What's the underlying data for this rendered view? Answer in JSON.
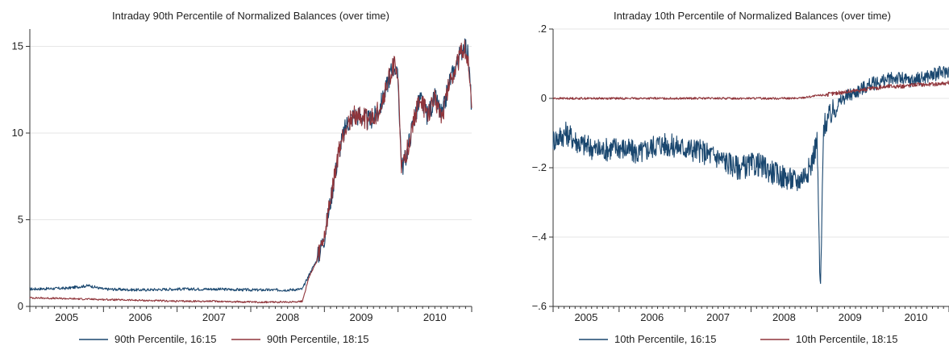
{
  "chart_data": [
    {
      "type": "line",
      "title": "Intraday 90th Percentile of Normalized Balances (over time)",
      "xlabel": "",
      "ylabel": "",
      "xlim": [
        2004.5,
        2010.5
      ],
      "ylim": [
        0,
        16
      ],
      "yticks": [
        0,
        5,
        10,
        15
      ],
      "ytick_labels": [
        "0",
        "5",
        "10",
        "15"
      ],
      "xtick_labels": [
        "2005",
        "2006",
        "2007",
        "2008",
        "2009",
        "2010"
      ],
      "grid": true,
      "legend": "bottom",
      "series": [
        {
          "name": "90th Percentile, 16:15",
          "color": "#1a476f",
          "x": [
            2004.5,
            2005.0,
            2005.3,
            2005.5,
            2006.0,
            2006.5,
            2007.0,
            2007.5,
            2008.0,
            2008.2,
            2008.3,
            2008.4,
            2008.5,
            2008.6,
            2008.7,
            2008.8,
            2008.9,
            2009.0,
            2009.1,
            2009.2,
            2009.3,
            2009.4,
            2009.45,
            2009.5,
            2009.55,
            2009.6,
            2009.7,
            2009.8,
            2009.9,
            2010.0,
            2010.1,
            2010.2,
            2010.3,
            2010.4,
            2010.45,
            2010.5
          ],
          "y": [
            1.0,
            1.05,
            1.2,
            1.0,
            0.95,
            1.0,
            1.0,
            0.95,
            0.95,
            1.0,
            1.9,
            2.7,
            4.0,
            6.5,
            9.0,
            10.5,
            11.0,
            11.0,
            10.7,
            11.0,
            12.0,
            13.5,
            14.0,
            13.0,
            8.0,
            8.5,
            10.5,
            12.0,
            11.0,
            12.0,
            11.0,
            13.0,
            14.0,
            15.2,
            14.5,
            11.5
          ]
        },
        {
          "name": "90th Percentile, 18:15",
          "color": "#90353b",
          "x": [
            2004.5,
            2005.0,
            2005.5,
            2006.0,
            2006.5,
            2007.0,
            2007.5,
            2008.0,
            2008.2,
            2008.3,
            2008.4,
            2008.5,
            2008.6,
            2008.7,
            2008.8,
            2008.9,
            2009.0,
            2009.1,
            2009.2,
            2009.3,
            2009.4,
            2009.45,
            2009.5,
            2009.55,
            2009.6,
            2009.7,
            2009.8,
            2009.9,
            2010.0,
            2010.1,
            2010.2,
            2010.3,
            2010.4,
            2010.45,
            2010.5
          ],
          "y": [
            0.5,
            0.45,
            0.4,
            0.35,
            0.3,
            0.3,
            0.25,
            0.25,
            0.3,
            1.8,
            2.6,
            4.0,
            6.5,
            9.0,
            10.5,
            11.0,
            11.0,
            10.7,
            11.0,
            12.0,
            13.5,
            14.0,
            13.0,
            7.8,
            8.5,
            10.5,
            12.0,
            11.0,
            12.0,
            11.0,
            13.0,
            14.0,
            15.0,
            14.2,
            11.2
          ]
        }
      ]
    },
    {
      "type": "line",
      "title": "Intraday 10th Percentile of Normalized Balances (over time)",
      "xlabel": "",
      "ylabel": "",
      "xlim": [
        2004.5,
        2010.5
      ],
      "ylim": [
        -0.6,
        0.2
      ],
      "yticks": [
        -0.6,
        -0.4,
        -0.2,
        0,
        0.2
      ],
      "ytick_labels": [
        "−.6",
        "−.4",
        "−.2",
        "0",
        ".2"
      ],
      "xtick_labels": [
        "2005",
        "2006",
        "2007",
        "2008",
        "2009",
        "2010"
      ],
      "grid": true,
      "legend": "bottom",
      "series": [
        {
          "name": "10th Percentile, 16:15",
          "color": "#1a476f",
          "x": [
            2004.5,
            2004.7,
            2004.9,
            2005.2,
            2005.5,
            2005.8,
            2006.1,
            2006.4,
            2006.7,
            2007.0,
            2007.3,
            2007.6,
            2007.9,
            2008.2,
            2008.4,
            2008.5,
            2008.55,
            2008.6,
            2008.7,
            2008.8,
            2008.9,
            2009.0,
            2009.1,
            2009.3,
            2009.5,
            2009.7,
            2009.9,
            2010.1,
            2010.3,
            2010.5
          ],
          "y": [
            -0.12,
            -0.1,
            -0.13,
            -0.15,
            -0.14,
            -0.16,
            -0.13,
            -0.14,
            -0.15,
            -0.17,
            -0.2,
            -0.19,
            -0.22,
            -0.24,
            -0.2,
            -0.12,
            -0.58,
            -0.08,
            -0.05,
            -0.02,
            0.0,
            0.01,
            0.02,
            0.04,
            0.05,
            0.06,
            0.05,
            0.06,
            0.07,
            0.08
          ]
        },
        {
          "name": "10th Percentile, 18:15",
          "color": "#90353b",
          "x": [
            2004.5,
            2005.0,
            2005.5,
            2006.0,
            2006.5,
            2007.0,
            2007.5,
            2008.0,
            2008.2,
            2008.4,
            2008.6,
            2008.8,
            2009.0,
            2009.2,
            2009.4,
            2009.6,
            2009.8,
            2010.0,
            2010.2,
            2010.5
          ],
          "y": [
            0.0,
            0.0,
            0.0,
            0.0,
            0.0,
            0.0,
            0.0,
            0.0,
            0.0,
            0.005,
            0.01,
            0.015,
            0.02,
            0.025,
            0.03,
            0.035,
            0.035,
            0.04,
            0.04,
            0.045
          ]
        }
      ]
    }
  ]
}
